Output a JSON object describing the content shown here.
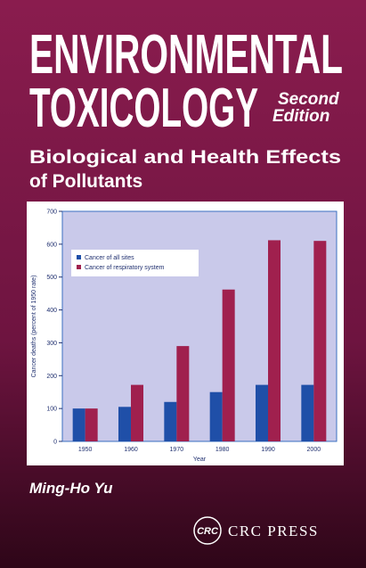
{
  "title_line1": "ENVIRONMENTAL",
  "title_line2": "TOXICOLOGY",
  "edition_line1": "Second",
  "edition_line2": "Edition",
  "subtitle_line1": "Biological and Health Effects",
  "subtitle_line2": "of Pollutants",
  "author": "Ming-Ho Yu",
  "publisher_logo": "CRC",
  "publisher": "CRC PRESS",
  "chart_data": {
    "type": "bar",
    "categories": [
      "1950",
      "1960",
      "1970",
      "1980",
      "1990",
      "2000"
    ],
    "series": [
      {
        "name": "Cancer of all sites",
        "color": "#1f4fa8",
        "values": [
          100,
          105,
          120,
          150,
          172,
          172
        ]
      },
      {
        "name": "Cancer of respiratory system",
        "color": "#a0204e",
        "values": [
          100,
          172,
          290,
          462,
          612,
          610
        ]
      }
    ],
    "ylim": [
      0,
      700
    ],
    "yticks": [
      0,
      100,
      200,
      300,
      400,
      500,
      600,
      700
    ],
    "xlabel": "Year",
    "ylabel": "Cancer deaths (percent of 1950 rate)",
    "legend": "upper left"
  }
}
